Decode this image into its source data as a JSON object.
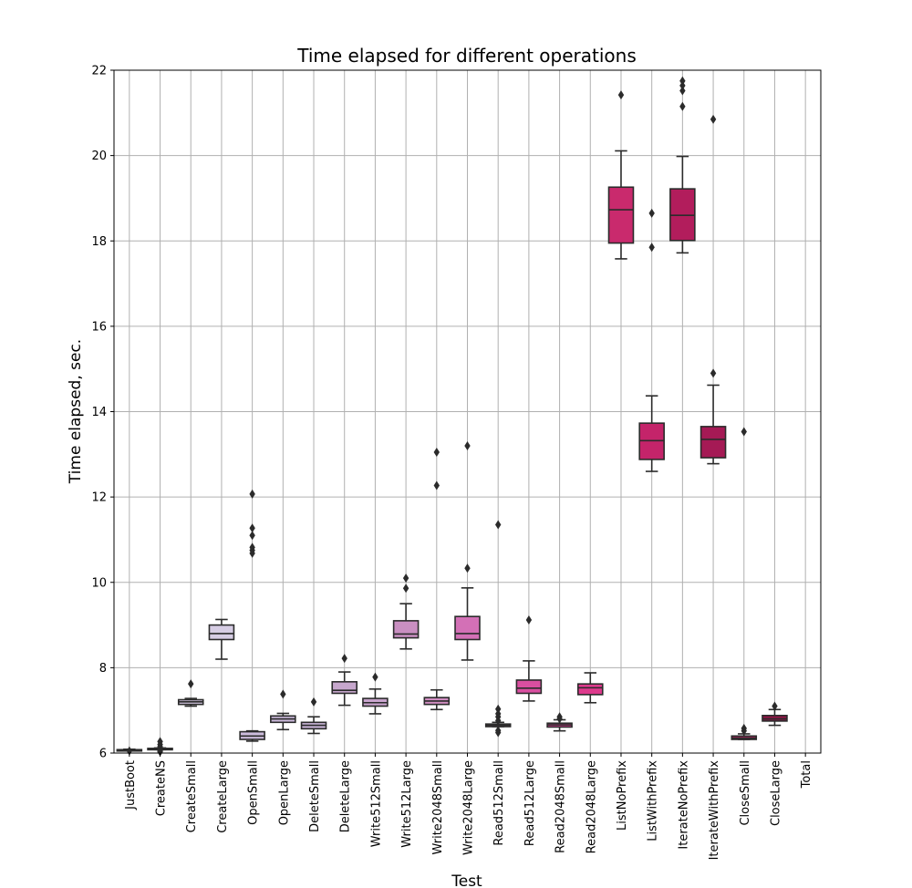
{
  "chart_data": {
    "type": "box",
    "title": "Time elapsed for different operations",
    "xlabel": "Test",
    "ylabel": "Time elapsed, sec.",
    "ylim": [
      6,
      22
    ],
    "yticks": [
      6,
      8,
      10,
      12,
      14,
      16,
      18,
      20,
      22
    ],
    "grid": true,
    "categories": [
      "JustBoot",
      "CreateNS",
      "CreateSmall",
      "CreateLarge",
      "OpenSmall",
      "OpenLarge",
      "DeleteSmall",
      "DeleteLarge",
      "Write512Small",
      "Write512Large",
      "Write2048Small",
      "Write2048Large",
      "Read512Small",
      "Read512Large",
      "Read2048Small",
      "Read2048Large",
      "ListNoPrefix",
      "ListWithPrefix",
      "IterateNoPrefix",
      "IterateWithPrefix",
      "CloseSmall",
      "CloseLarge",
      "Total"
    ],
    "boxes": [
      {
        "category": "JustBoot",
        "whisker_low": 6.06,
        "q1": 6.07,
        "median": 6.075,
        "q3": 6.08,
        "whisker_high": 6.09,
        "outliers": [
          6.05
        ],
        "color": "#d8d0e8"
      },
      {
        "category": "CreateNS",
        "whisker_low": 6.08,
        "q1": 6.09,
        "median": 6.1,
        "q3": 6.11,
        "whisker_high": 6.12,
        "outliers": [
          6.27,
          6.2,
          6.15,
          6.05,
          6.03
        ],
        "color": "#d6cfe6"
      },
      {
        "category": "CreateSmall",
        "whisker_low": 7.1,
        "q1": 7.14,
        "median": 7.2,
        "q3": 7.25,
        "whisker_high": 7.28,
        "outliers": [
          7.62
        ],
        "color": "#d4c8e2"
      },
      {
        "category": "CreateLarge",
        "whisker_low": 8.2,
        "q1": 8.66,
        "median": 8.8,
        "q3": 9.0,
        "whisker_high": 9.13,
        "outliers": [],
        "color": "#d6cde4"
      },
      {
        "category": "OpenSmall",
        "whisker_low": 6.28,
        "q1": 6.32,
        "median": 6.4,
        "q3": 6.5,
        "whisker_high": 6.52,
        "outliers": [
          12.07,
          11.27,
          11.1,
          10.82,
          10.75,
          10.68
        ],
        "color": "#ccbcdc"
      },
      {
        "category": "OpenLarge",
        "whisker_low": 6.55,
        "q1": 6.72,
        "median": 6.8,
        "q3": 6.87,
        "whisker_high": 6.93,
        "outliers": [
          7.38
        ],
        "color": "#c9b8d9"
      },
      {
        "category": "DeleteSmall",
        "whisker_low": 6.46,
        "q1": 6.57,
        "median": 6.65,
        "q3": 6.72,
        "whisker_high": 6.85,
        "outliers": [
          7.2
        ],
        "color": "#c8b4d6"
      },
      {
        "category": "DeleteLarge",
        "whisker_low": 7.12,
        "q1": 7.4,
        "median": 7.47,
        "q3": 7.67,
        "whisker_high": 7.9,
        "outliers": [
          8.22
        ],
        "color": "#c7a7cd"
      },
      {
        "category": "Write512Small",
        "whisker_low": 6.92,
        "q1": 7.1,
        "median": 7.18,
        "q3": 7.28,
        "whisker_high": 7.5,
        "outliers": [
          7.78
        ],
        "color": "#c8a4cc"
      },
      {
        "category": "Write512Large",
        "whisker_low": 8.44,
        "q1": 8.7,
        "median": 8.79,
        "q3": 9.1,
        "whisker_high": 9.5,
        "outliers": [
          10.1,
          9.86
        ],
        "color": "#c98fc1"
      },
      {
        "category": "Write2048Small",
        "whisker_low": 7.02,
        "q1": 7.14,
        "median": 7.22,
        "q3": 7.3,
        "whisker_high": 7.48,
        "outliers": [
          13.05,
          12.27
        ],
        "color": "#d18ec2"
      },
      {
        "category": "Write2048Large",
        "whisker_low": 8.18,
        "q1": 8.66,
        "median": 8.8,
        "q3": 9.2,
        "whisker_high": 9.87,
        "outliers": [
          13.2,
          10.33
        ],
        "color": "#d370b6"
      },
      {
        "category": "Read512Small",
        "whisker_low": 6.62,
        "q1": 6.62,
        "median": 6.65,
        "q3": 6.68,
        "whisker_high": 6.72,
        "outliers": [
          11.35,
          7.03,
          6.92,
          6.85,
          6.76,
          6.53,
          6.48
        ],
        "color": "#d65fa8"
      },
      {
        "category": "Read512Large",
        "whisker_low": 7.22,
        "q1": 7.4,
        "median": 7.52,
        "q3": 7.71,
        "whisker_high": 8.16,
        "outliers": [
          9.12
        ],
        "color": "#d94fa0"
      },
      {
        "category": "Read2048Small",
        "whisker_low": 6.52,
        "q1": 6.61,
        "median": 6.66,
        "q3": 6.7,
        "whisker_high": 6.78,
        "outliers": [
          6.85,
          6.8
        ],
        "color": "#db3d94"
      },
      {
        "category": "Read2048Large",
        "whisker_low": 7.18,
        "q1": 7.37,
        "median": 7.53,
        "q3": 7.62,
        "whisker_high": 7.88,
        "outliers": [],
        "color": "#dd3a8c"
      },
      {
        "category": "ListNoPrefix",
        "whisker_low": 17.58,
        "q1": 17.95,
        "median": 18.73,
        "q3": 19.26,
        "whisker_high": 20.11,
        "outliers": [
          21.42
        ],
        "color": "#c92a6d"
      },
      {
        "category": "ListWithPrefix",
        "whisker_low": 12.6,
        "q1": 12.88,
        "median": 13.32,
        "q3": 13.73,
        "whisker_high": 14.37,
        "outliers": [
          18.65,
          17.85
        ],
        "color": "#c4246a"
      },
      {
        "category": "IterateNoPrefix",
        "whisker_low": 17.72,
        "q1": 18.01,
        "median": 18.6,
        "q3": 19.22,
        "whisker_high": 19.98,
        "outliers": [
          21.75,
          21.64,
          21.52,
          21.15
        ],
        "color": "#b21d5c"
      },
      {
        "category": "IterateWithPrefix",
        "whisker_low": 12.78,
        "q1": 12.92,
        "median": 13.35,
        "q3": 13.65,
        "whisker_high": 14.62,
        "outliers": [
          20.85,
          14.9
        ],
        "color": "#a51a55"
      },
      {
        "category": "CloseSmall",
        "whisker_low": 6.32,
        "q1": 6.32,
        "median": 6.35,
        "q3": 6.4,
        "whisker_high": 6.45,
        "outliers": [
          13.53,
          6.58,
          6.52
        ],
        "color": "#a2235a"
      },
      {
        "category": "CloseLarge",
        "whisker_low": 6.65,
        "q1": 6.75,
        "median": 6.8,
        "q3": 6.88,
        "whisker_high": 7.02,
        "outliers": [
          7.1
        ],
        "color": "#8e1545"
      },
      {
        "category": "Total",
        "whisker_low": null,
        "q1": null,
        "median": null,
        "q3": null,
        "whisker_high": null,
        "outliers": [],
        "color": "#7a1038"
      }
    ]
  }
}
